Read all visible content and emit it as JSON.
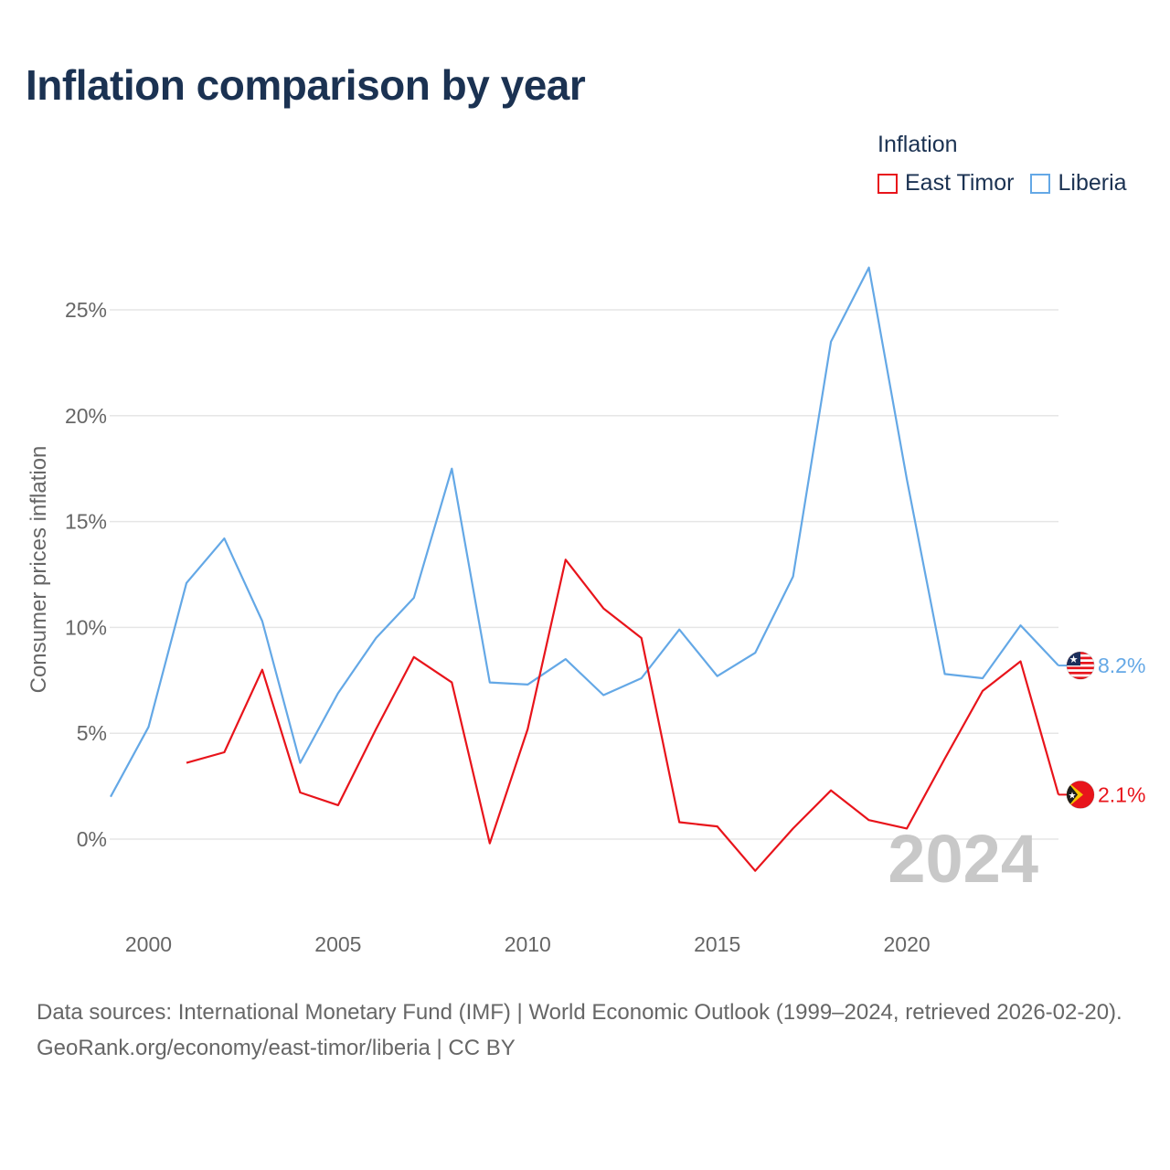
{
  "title": "Inflation comparison by year",
  "legend": {
    "title": "Inflation",
    "items": [
      {
        "label": "East Timor",
        "color": "#e8141b"
      },
      {
        "label": "Liberia",
        "color": "#64a8e6"
      }
    ]
  },
  "chart_data": {
    "type": "line",
    "ylabel": "Consumer prices inflation",
    "xlabel": "",
    "xlim": [
      1999,
      2024
    ],
    "ylim": [
      -4,
      27
    ],
    "x_ticks": [
      2000,
      2005,
      2010,
      2015,
      2020
    ],
    "y_ticks": [
      0,
      5,
      10,
      15,
      20,
      25
    ],
    "y_tick_labels": [
      "0%",
      "5%",
      "10%",
      "15%",
      "20%",
      "25%"
    ],
    "year_watermark": "2024",
    "series": [
      {
        "name": "East Timor",
        "color": "#e8141b",
        "end_label": "2.1%",
        "flag": "east-timor-flag",
        "x": [
          2001,
          2002,
          2003,
          2004,
          2005,
          2006,
          2007,
          2008,
          2009,
          2010,
          2011,
          2012,
          2013,
          2014,
          2015,
          2016,
          2017,
          2018,
          2019,
          2020,
          2021,
          2022,
          2023,
          2024
        ],
        "values": [
          3.6,
          4.1,
          8.0,
          2.2,
          1.6,
          5.2,
          8.6,
          7.4,
          -0.2,
          5.2,
          13.2,
          10.9,
          9.5,
          0.8,
          0.6,
          -1.5,
          0.5,
          2.3,
          0.9,
          0.5,
          3.8,
          7.0,
          8.4,
          2.1
        ]
      },
      {
        "name": "Liberia",
        "color": "#64a8e6",
        "end_label": "8.2%",
        "flag": "liberia-flag",
        "x": [
          1999,
          2000,
          2001,
          2002,
          2003,
          2004,
          2005,
          2006,
          2007,
          2008,
          2009,
          2010,
          2011,
          2012,
          2013,
          2014,
          2015,
          2016,
          2017,
          2018,
          2019,
          2020,
          2021,
          2022,
          2023,
          2024
        ],
        "values": [
          2.0,
          5.3,
          12.1,
          14.2,
          10.3,
          3.6,
          6.9,
          9.5,
          11.4,
          17.5,
          7.4,
          7.3,
          8.5,
          6.8,
          7.6,
          9.9,
          7.7,
          8.8,
          12.4,
          23.5,
          27.0,
          17.0,
          7.8,
          7.6,
          10.1,
          8.2
        ]
      }
    ]
  },
  "footer": {
    "sources": "Data sources: International Monetary Fund (IMF) | World Economic Outlook (1999–2024, retrieved 2026-02-20).",
    "link": "GeoRank.org/economy/east-timor/liberia | CC BY"
  }
}
